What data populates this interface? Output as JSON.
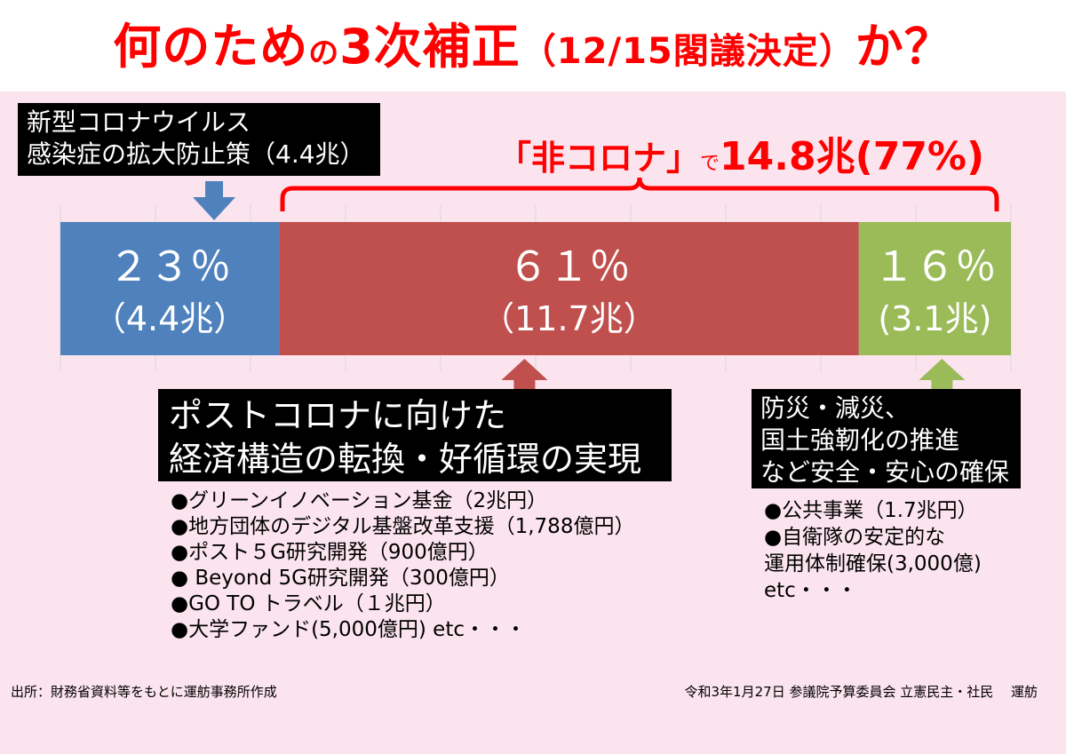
{
  "title": {
    "part1": "何のため",
    "part2": "の",
    "part3": "3次補正",
    "part4": "（12/15閣議決定）",
    "part5": "か？"
  },
  "callouts": {
    "corona": [
      "新型コロナウイルス",
      "感染症の拡大防止策（4.4兆）"
    ],
    "post": [
      "ポストコロナに向けた",
      "経済構造の転換・好循環の実現"
    ],
    "disaster": [
      "防災・減災、",
      "国土強靭化の推進",
      "など安全・安心の確保"
    ]
  },
  "brace": {
    "prefix": "「非コロナ」",
    "de": "で",
    "value": "14.8兆(77%)"
  },
  "colors": {
    "blue": "#4f81bd",
    "red": "#c0504d",
    "green": "#9bbb59",
    "title_red": "#ff0000",
    "background": "#fce4ef"
  },
  "chart_data": {
    "type": "bar",
    "orientation": "horizontal-stacked",
    "unit": "兆円",
    "segments": [
      {
        "percent_label": "２３％",
        "amount_label": "（4.4兆）",
        "percent": 23,
        "amount": 4.4,
        "color": "#4f81bd"
      },
      {
        "percent_label": "６１％",
        "amount_label": "（11.7兆）",
        "percent": 61,
        "amount": 11.7,
        "color": "#c0504d"
      },
      {
        "percent_label": "１６％",
        "amount_label": "(3.1兆)",
        "percent": 16,
        "amount": 3.1,
        "color": "#9bbb59"
      }
    ],
    "grid": true
  },
  "lists": {
    "post": [
      "●グリーンイノベーション基金（2兆円）",
      "●地方団体のデジタル基盤改革支援（1,788億円）",
      "●ポスト５G研究開発（900億円）",
      "●  Beyond 5G研究開発（300億円）",
      "●GO TO トラベル（１兆円）",
      "●大学ファンド(5,000億円)         etc・・・"
    ],
    "disaster": [
      "●公共事業（1.7兆円）",
      "●自衛隊の安定的な",
      "   運用体制確保(3,000億)",
      "   etc・・・"
    ]
  },
  "footer": {
    "left": "出所：財務省資料等をもとに運舫事務所作成",
    "right": "令和3年1月27日 参議院予算委員会 立憲民主・社民　 運舫"
  }
}
